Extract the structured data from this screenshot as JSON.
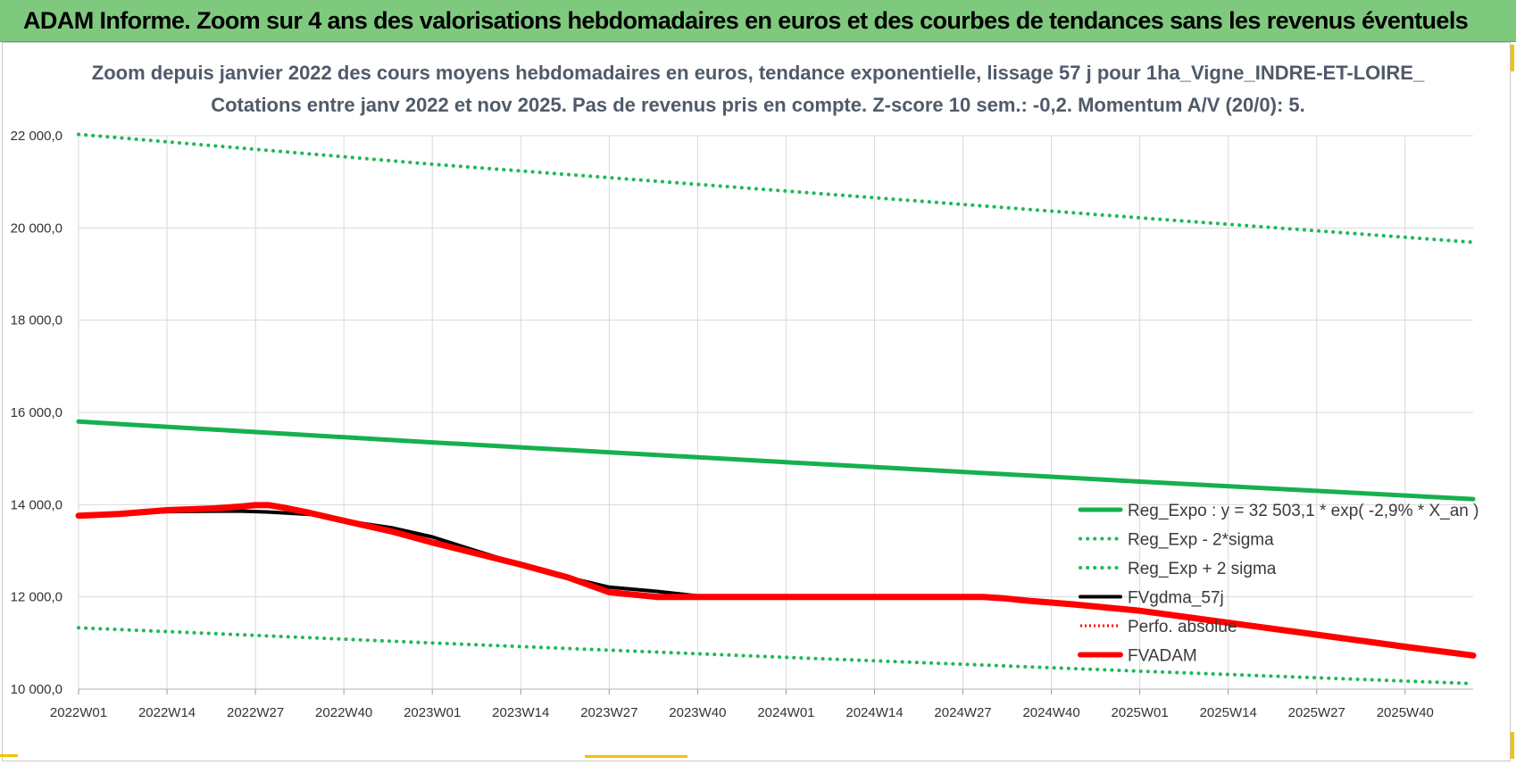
{
  "banner": {
    "title": "ADAM Informe. Zoom sur 4 ans des valorisations hebdomadaires en euros et des courbes de tendances sans les revenus éventuels"
  },
  "colors": {
    "banner_bg": "#7fc97f",
    "trend_green": "#16b04e",
    "band_green": "#1fb85a",
    "fv_black": "#000000",
    "adam_red": "#ff0000",
    "grid": "#d9d9d9"
  },
  "chart_data": {
    "type": "line",
    "title_line1": "Zoom depuis janvier 2022 des cours moyens hebdomadaires en euros, tendance exponentielle, lissage 57 j pour 1ha_Vigne_INDRE-ET-LOIRE_",
    "title_line2": "Cotations entre janv 2022 et nov 2025. Pas de revenus pris en compte. Z-score 10 sem.: -0,2. Momentum A/V (20/0): 5.",
    "x_ticks": [
      "2022W01",
      "2022W14",
      "2022W27",
      "2022W40",
      "2023W01",
      "2023W14",
      "2023W27",
      "2023W40",
      "2024W01",
      "2024W14",
      "2024W27",
      "2024W40",
      "2025W01",
      "2025W14",
      "2025W27",
      "2025W40"
    ],
    "x_range": [
      0,
      205
    ],
    "y_ticks": [
      "10 000,0",
      "12 000,0",
      "14 000,0",
      "16 000,0",
      "18 000,0",
      "20 000,0",
      "22 000,0"
    ],
    "ylim": [
      10000,
      22000
    ],
    "series": [
      {
        "name": "Reg_Expo : y = 32 503,1 * exp( -2,9% *  X_an )",
        "style": "solid",
        "color": "#16b04e",
        "x": [
          0,
          52,
          104,
          156,
          205
        ],
        "y": [
          15800,
          15350,
          14920,
          14500,
          14120
        ]
      },
      {
        "name": "Reg_Exp - 2*sigma",
        "style": "dotted",
        "color": "#1fb85a",
        "x": [
          0,
          52,
          104,
          156,
          205
        ],
        "y": [
          11330,
          11000,
          10690,
          10390,
          10120
        ]
      },
      {
        "name": "Reg_Exp + 2 sigma",
        "style": "dotted",
        "color": "#1fb85a",
        "x": [
          0,
          52,
          104,
          156,
          205
        ],
        "y": [
          22030,
          21380,
          20800,
          20220,
          19690
        ]
      },
      {
        "name": "FVgdma_57j",
        "style": "solid",
        "color": "#000000",
        "x": [
          0,
          6,
          13,
          20,
          24,
          28,
          34,
          39,
          46,
          52,
          58,
          65,
          72,
          78,
          85,
          91,
          104,
          117,
          130,
          134,
          140,
          146,
          156,
          169,
          182,
          195,
          205
        ],
        "y": [
          13760,
          13800,
          13850,
          13860,
          13860,
          13840,
          13790,
          13650,
          13500,
          13300,
          13020,
          12700,
          12420,
          12210,
          12120,
          12020,
          12000,
          12000,
          12000,
          11970,
          11930,
          11850,
          11700,
          11430,
          11160,
          10890,
          10710
        ]
      },
      {
        "name": "Perfo. absolue",
        "style": "dotted",
        "color": "#ff0000",
        "x": [],
        "y": []
      },
      {
        "name": "FVADAM",
        "style": "solid",
        "color": "#ff0000",
        "x": [
          0,
          6,
          13,
          20,
          24,
          26,
          28,
          30,
          34,
          39,
          46,
          52,
          58,
          65,
          72,
          78,
          85,
          91,
          104,
          117,
          130,
          133,
          136,
          140,
          146,
          156,
          169,
          182,
          195,
          205
        ],
        "y": [
          13760,
          13800,
          13880,
          13920,
          13960,
          13990,
          13990,
          13940,
          13820,
          13650,
          13420,
          13180,
          12960,
          12700,
          12420,
          12100,
          12000,
          12000,
          12000,
          12000,
          12000,
          12000,
          11970,
          11910,
          11840,
          11700,
          11440,
          11180,
          10920,
          10730
        ]
      }
    ],
    "legend_position": "bottom-right"
  }
}
